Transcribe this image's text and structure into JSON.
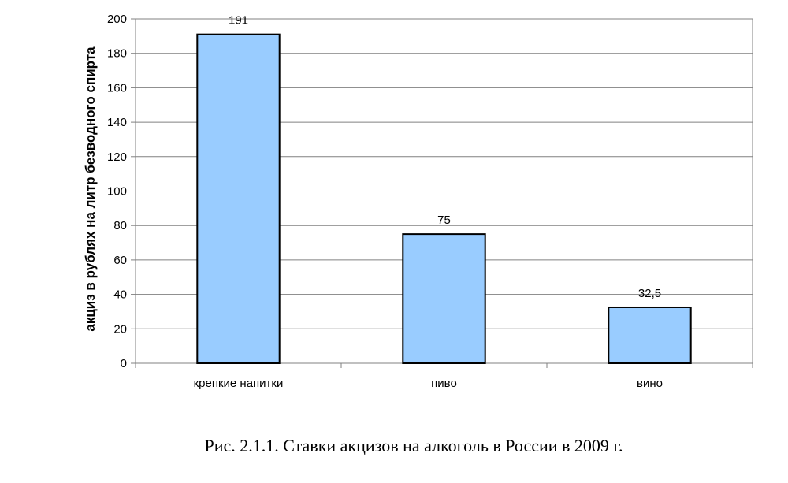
{
  "chart_data": {
    "type": "bar",
    "categories": [
      "крепкие напитки",
      "пиво",
      "вино"
    ],
    "values": [
      191,
      75,
      32.5
    ],
    "data_labels": [
      "191",
      "75",
      "32,5"
    ],
    "ylabel": "акциз в рублях на литр безводного спирта",
    "xlabel": "",
    "ylim": [
      0,
      200
    ],
    "yticks": [
      0,
      20,
      40,
      60,
      80,
      100,
      120,
      140,
      160,
      180,
      200
    ],
    "grid": true,
    "legend": "none",
    "bar_color": "#99CCFF",
    "bar_edge_color": "#000000",
    "grid_color": "#808080"
  },
  "caption": "Рис. 2.1.1. Ставки акцизов на алкоголь в России в 2009 г."
}
